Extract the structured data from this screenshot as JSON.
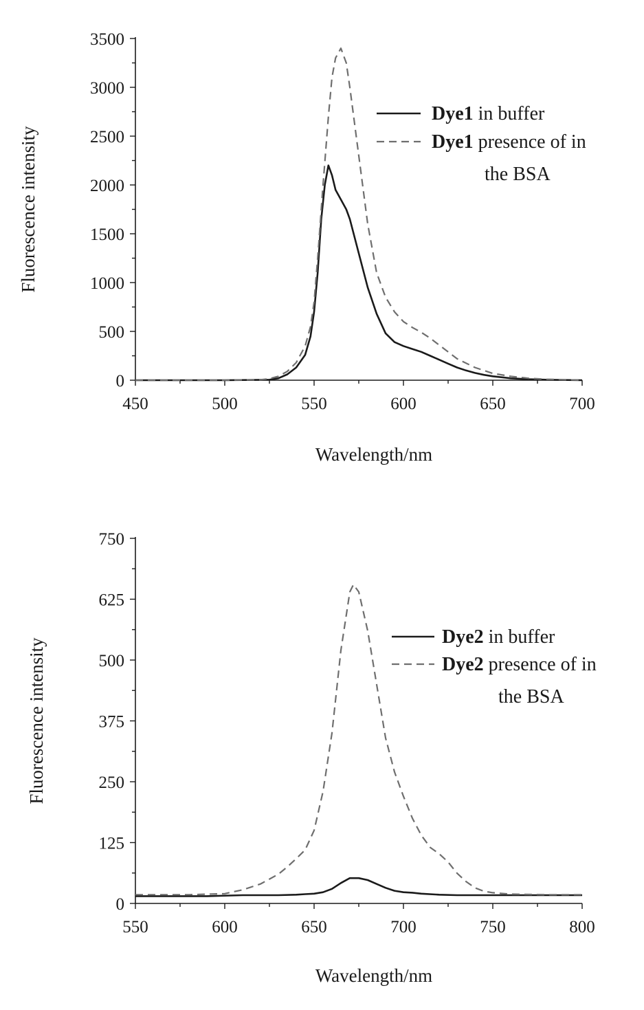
{
  "chart_data": [
    {
      "type": "line",
      "title": "",
      "xlabel": "Wavelength/nm",
      "ylabel": "Fluorescence intensity",
      "xlim": [
        450,
        700
      ],
      "ylim": [
        0,
        3500
      ],
      "xticks": [
        450,
        500,
        550,
        600,
        650,
        700
      ],
      "xtick_labels": [
        "450",
        "500",
        "550",
        "600",
        "650",
        "700"
      ],
      "yticks": [
        0,
        500,
        1000,
        1500,
        2000,
        2500,
        3000,
        3500
      ],
      "ytick_labels": [
        "0",
        "500",
        "1000",
        "1500",
        "2000",
        "2500",
        "3000",
        "3500"
      ],
      "legend_position": "top-right",
      "series": [
        {
          "name_bold": "Dye1",
          "name_rest": " in buffer",
          "name_cont": "",
          "style": "solid",
          "color": "#1a1a1a",
          "x": [
            450,
            500,
            525,
            530,
            535,
            540,
            545,
            548,
            550,
            552,
            554,
            556,
            558,
            560,
            562,
            565,
            568,
            570,
            575,
            580,
            585,
            590,
            595,
            600,
            605,
            610,
            615,
            620,
            625,
            630,
            635,
            640,
            645,
            650,
            660,
            670,
            680,
            700
          ],
          "y": [
            0,
            0,
            5,
            20,
            60,
            130,
            260,
            450,
            700,
            1100,
            1650,
            2000,
            2200,
            2100,
            1950,
            1850,
            1750,
            1650,
            1300,
            950,
            680,
            480,
            390,
            350,
            320,
            290,
            250,
            210,
            170,
            130,
            100,
            75,
            55,
            40,
            20,
            10,
            5,
            0
          ]
        },
        {
          "name_bold": "Dye1",
          "name_rest": " presence of in",
          "name_cont": "the BSA",
          "style": "dashed",
          "color": "#6e6e6e",
          "x": [
            450,
            500,
            520,
            525,
            530,
            535,
            540,
            545,
            548,
            550,
            552,
            555,
            558,
            560,
            562,
            565,
            568,
            570,
            575,
            580,
            585,
            590,
            595,
            600,
            605,
            610,
            615,
            620,
            625,
            630,
            640,
            650,
            660,
            670,
            680,
            700
          ],
          "y": [
            0,
            0,
            5,
            15,
            40,
            90,
            180,
            350,
            550,
            800,
            1250,
            2000,
            2700,
            3100,
            3300,
            3400,
            3250,
            3000,
            2300,
            1600,
            1100,
            850,
            700,
            600,
            540,
            490,
            430,
            360,
            290,
            220,
            130,
            70,
            40,
            20,
            10,
            0
          ]
        }
      ]
    },
    {
      "type": "line",
      "title": "",
      "xlabel": "Wavelength/nm",
      "ylabel": "Fluorescence intensity",
      "xlim": [
        550,
        800
      ],
      "ylim": [
        0,
        750
      ],
      "xticks": [
        550,
        600,
        650,
        700,
        750,
        800
      ],
      "xtick_labels": [
        "550",
        "600",
        "650",
        "700",
        "750",
        "800"
      ],
      "yticks": [
        0,
        125,
        250,
        375,
        500,
        625,
        750
      ],
      "ytick_labels": [
        "0",
        "125",
        "250",
        "375",
        "500",
        "625",
        "750"
      ],
      "legend_position": "right",
      "series": [
        {
          "name_bold": "Dye2",
          "name_rest": " in buffer",
          "name_cont": "",
          "style": "solid",
          "color": "#1a1a1a",
          "x": [
            550,
            570,
            590,
            610,
            630,
            640,
            645,
            650,
            655,
            660,
            665,
            670,
            675,
            680,
            685,
            690,
            695,
            700,
            705,
            710,
            720,
            730,
            750,
            770,
            800
          ],
          "y": [
            15,
            15,
            15,
            17,
            17,
            18,
            19,
            20,
            23,
            30,
            42,
            52,
            52,
            48,
            40,
            32,
            26,
            23,
            22,
            20,
            18,
            17,
            17,
            17,
            17
          ]
        },
        {
          "name_bold": "Dye2",
          "name_rest": " presence of in",
          "name_cont": "the BSA",
          "style": "dashed",
          "color": "#6e6e6e",
          "x": [
            550,
            580,
            600,
            610,
            620,
            630,
            635,
            640,
            645,
            650,
            655,
            660,
            665,
            670,
            672,
            675,
            680,
            685,
            690,
            695,
            700,
            705,
            710,
            715,
            720,
            725,
            730,
            735,
            740,
            745,
            750,
            760,
            780,
            800
          ],
          "y": [
            18,
            18,
            20,
            28,
            40,
            60,
            75,
            92,
            110,
            150,
            230,
            350,
            520,
            640,
            655,
            640,
            560,
            450,
            340,
            270,
            220,
            175,
            140,
            115,
            102,
            85,
            62,
            45,
            32,
            25,
            22,
            19,
            18,
            18
          ]
        }
      ]
    }
  ]
}
